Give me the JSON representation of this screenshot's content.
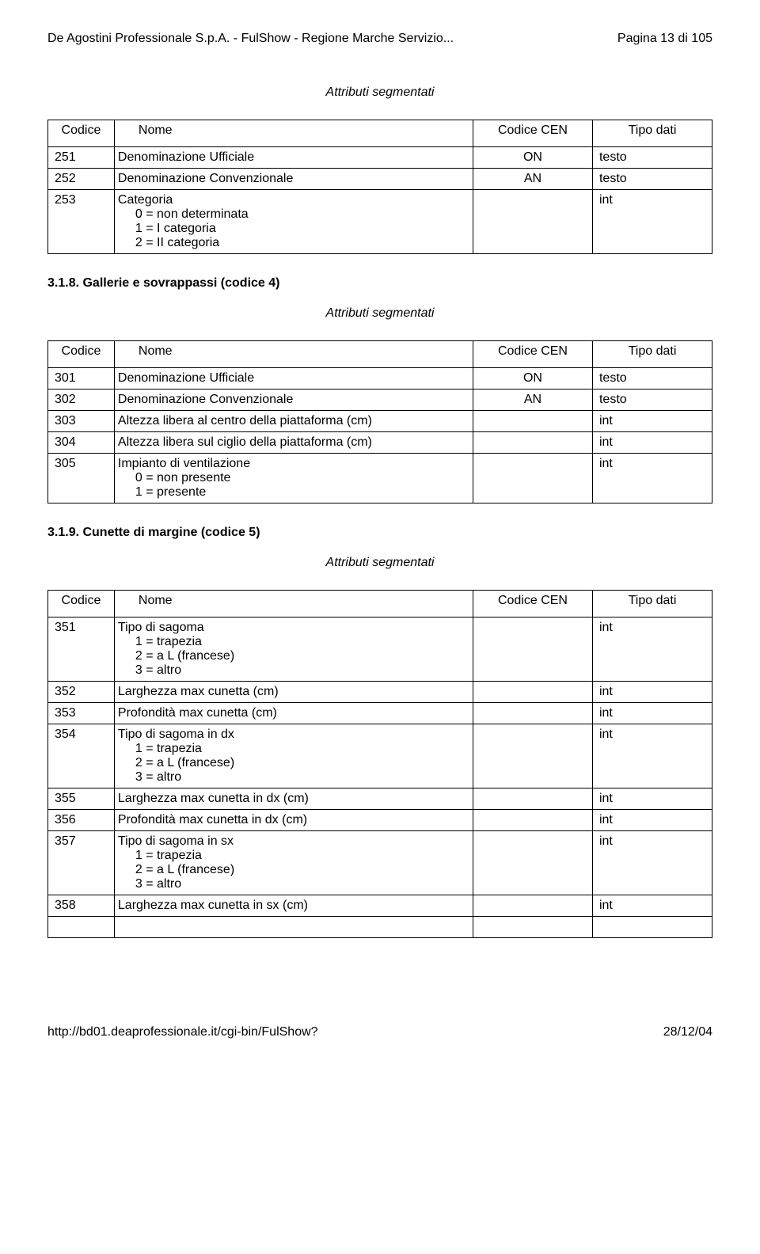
{
  "header": {
    "left": "De Agostini Professionale S.p.A. - FulShow - Regione Marche Servizio...",
    "right": "Pagina 13 di 105"
  },
  "caption1": "Attributi segmentati",
  "table1": {
    "headers": {
      "c1": "Codice",
      "c2": "Nome",
      "c3": "Codice CEN",
      "c4": "Tipo dati"
    },
    "r1": {
      "c1": "251",
      "c2": "Denominazione Ufficiale",
      "c3": "ON",
      "c4": "testo"
    },
    "r2": {
      "c1": "252",
      "c2": "Denominazione Convenzionale",
      "c3": "AN",
      "c4": "testo"
    },
    "r3": {
      "c1": "253",
      "c2": "Categoria",
      "c3": "",
      "c4": "int",
      "s1": "0 = non determinata",
      "s2": "1 = I categoria",
      "s3": "2 = II categoria"
    }
  },
  "heading1": "3.1.8. Gallerie e sovrappassi (codice 4)",
  "caption2": "Attributi segmentati",
  "table2": {
    "headers": {
      "c1": "Codice",
      "c2": "Nome",
      "c3": "Codice CEN",
      "c4": "Tipo dati"
    },
    "r1": {
      "c1": "301",
      "c2": "Denominazione Ufficiale",
      "c3": "ON",
      "c4": "testo"
    },
    "r2": {
      "c1": "302",
      "c2": "Denominazione Convenzionale",
      "c3": "AN",
      "c4": "testo"
    },
    "r3": {
      "c1": "303",
      "c2": "Altezza libera al centro della piattaforma (cm)",
      "c3": "",
      "c4": "int"
    },
    "r4": {
      "c1": "304",
      "c2": "Altezza libera sul ciglio della piattaforma (cm)",
      "c3": "",
      "c4": "int"
    },
    "r5": {
      "c1": "305",
      "c2": "Impianto di ventilazione",
      "c3": "",
      "c4": "int",
      "s1": "0 = non presente",
      "s2": "1 = presente"
    }
  },
  "heading2": "3.1.9. Cunette di margine (codice 5)",
  "caption3": "Attributi segmentati",
  "table3": {
    "headers": {
      "c1": "Codice",
      "c2": "Nome",
      "c3": "Codice CEN",
      "c4": "Tipo dati"
    },
    "r1": {
      "c1": "351",
      "c2": "Tipo di sagoma",
      "c3": "",
      "c4": "int",
      "s1": "1 = trapezia",
      "s2": "2 = a L (francese)",
      "s3": "3 = altro"
    },
    "r2": {
      "c1": "352",
      "c2": "Larghezza max cunetta (cm)",
      "c3": "",
      "c4": "int"
    },
    "r3": {
      "c1": "353",
      "c2": "Profondità max cunetta (cm)",
      "c3": "",
      "c4": "int"
    },
    "r4": {
      "c1": "354",
      "c2": "Tipo di sagoma in dx",
      "c3": "",
      "c4": "int",
      "s1": "1 = trapezia",
      "s2": "2 = a L (francese)",
      "s3": "3 = altro"
    },
    "r5": {
      "c1": "355",
      "c2": "Larghezza max cunetta in dx (cm)",
      "c3": "",
      "c4": "int"
    },
    "r6": {
      "c1": "356",
      "c2": "Profondità max cunetta in dx (cm)",
      "c3": "",
      "c4": "int"
    },
    "r7": {
      "c1": "357",
      "c2": "Tipo di sagoma in sx",
      "c3": "",
      "c4": "int",
      "s1": "1 = trapezia",
      "s2": "2 = a L (francese)",
      "s3": "3 = altro"
    },
    "r8": {
      "c1": "358",
      "c2": "Larghezza max cunetta in sx (cm)",
      "c3": "",
      "c4": "int"
    }
  },
  "footer": {
    "left": "http://bd01.deaprofessionale.it/cgi-bin/FulShow?",
    "right": "28/12/04"
  }
}
